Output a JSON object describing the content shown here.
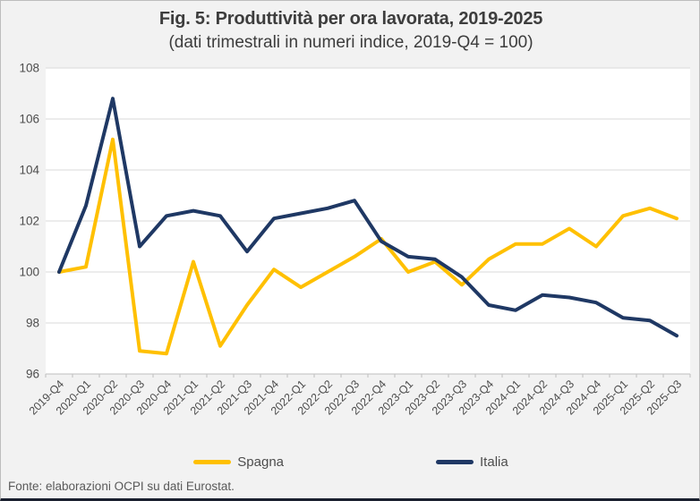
{
  "title": "Fig. 5: Produttività per ora lavorata, 2019-2025",
  "subtitle": "(dati trimestrali in numeri indice, 2019-Q4 = 100)",
  "footer": "Fonte: elaborazioni OCPI su dati Eurostat.",
  "colors": {
    "spagna": "#FFC000",
    "italia": "#1F3864",
    "gridline": "#D9D9D9",
    "axis_line": "#BFBFBF",
    "plot_background": "#FFFFFF",
    "page_background": "#F2F2F2",
    "axis_label_text": "#4D4D4D"
  },
  "chart_data": {
    "type": "line",
    "categories": [
      "2019-Q4",
      "2020-Q1",
      "2020-Q2",
      "2020-Q3",
      "2020-Q4",
      "2021-Q1",
      "2021-Q2",
      "2021-Q3",
      "2021-Q4",
      "2022-Q1",
      "2022-Q2",
      "2022-Q3",
      "2022-Q4",
      "2023-Q1",
      "2023-Q2",
      "2023-Q3",
      "2023-Q4",
      "2024-Q1",
      "2024-Q2",
      "2024-Q3",
      "2024-Q4",
      "2025-Q1",
      "2025-Q2",
      "2025-Q3"
    ],
    "series": [
      {
        "name": "Spagna",
        "color": "#FFC000",
        "values": [
          100.0,
          100.2,
          105.2,
          96.9,
          96.8,
          100.4,
          97.1,
          98.7,
          100.1,
          99.4,
          100.0,
          100.6,
          101.3,
          100.0,
          100.4,
          99.5,
          100.5,
          101.1,
          101.1,
          101.7,
          101.0,
          102.2,
          102.5,
          102.1
        ]
      },
      {
        "name": "Italia",
        "color": "#1F3864",
        "values": [
          100.0,
          102.6,
          106.8,
          101.0,
          102.2,
          102.4,
          102.2,
          100.8,
          102.1,
          102.3,
          102.5,
          102.8,
          101.2,
          100.6,
          100.5,
          99.8,
          98.7,
          98.5,
          99.1,
          99.0,
          98.8,
          98.2,
          98.1,
          97.5
        ]
      }
    ],
    "title": "Fig. 5: Produttività per ora lavorata, 2019-2025",
    "subtitle": "(dati trimestrali in numeri indice, 2019-Q4 = 100)",
    "xlabel": "",
    "ylabel": "",
    "ylim": [
      96,
      108
    ],
    "ytick_step": 2,
    "grid": true,
    "legend_position": "bottom"
  }
}
